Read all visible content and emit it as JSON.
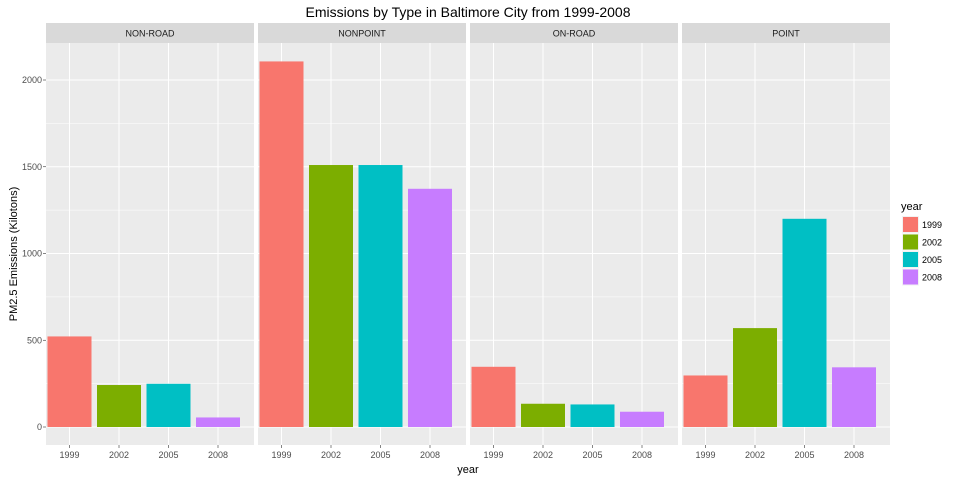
{
  "chart_data": {
    "type": "bar",
    "title": "Emissions by Type in Baltimore City from 1999-2008",
    "xlabel": "year",
    "ylabel": "PM2.5 Emissions (Kilotons)",
    "ylim": [
      0,
      2300
    ],
    "yticks": [
      0,
      500,
      1000,
      1500,
      2000
    ],
    "grid": true,
    "legend": {
      "title": "year",
      "placement": "right",
      "entries": [
        "1999",
        "2002",
        "2005",
        "2008"
      ]
    },
    "categories": [
      "1999",
      "2002",
      "2005",
      "2008"
    ],
    "colors": {
      "1999": "#F8766D",
      "2002": "#7CAE00",
      "2005": "#00BFC4",
      "2008": "#C77CFF"
    },
    "panels": [
      {
        "name": "NON-ROAD",
        "values": [
          522,
          242,
          249,
          55
        ]
      },
      {
        "name": "NONPOINT",
        "values": [
          2107,
          1510,
          1510,
          1373
        ]
      },
      {
        "name": "ON-ROAD",
        "values": [
          347,
          134,
          130,
          88
        ]
      },
      {
        "name": "POINT",
        "values": [
          297,
          570,
          1200,
          344
        ]
      }
    ]
  },
  "style": {
    "panel_background": "#EBEBEB",
    "strip_background": "#D9D9D9",
    "grid_color": "#FFFFFF"
  }
}
